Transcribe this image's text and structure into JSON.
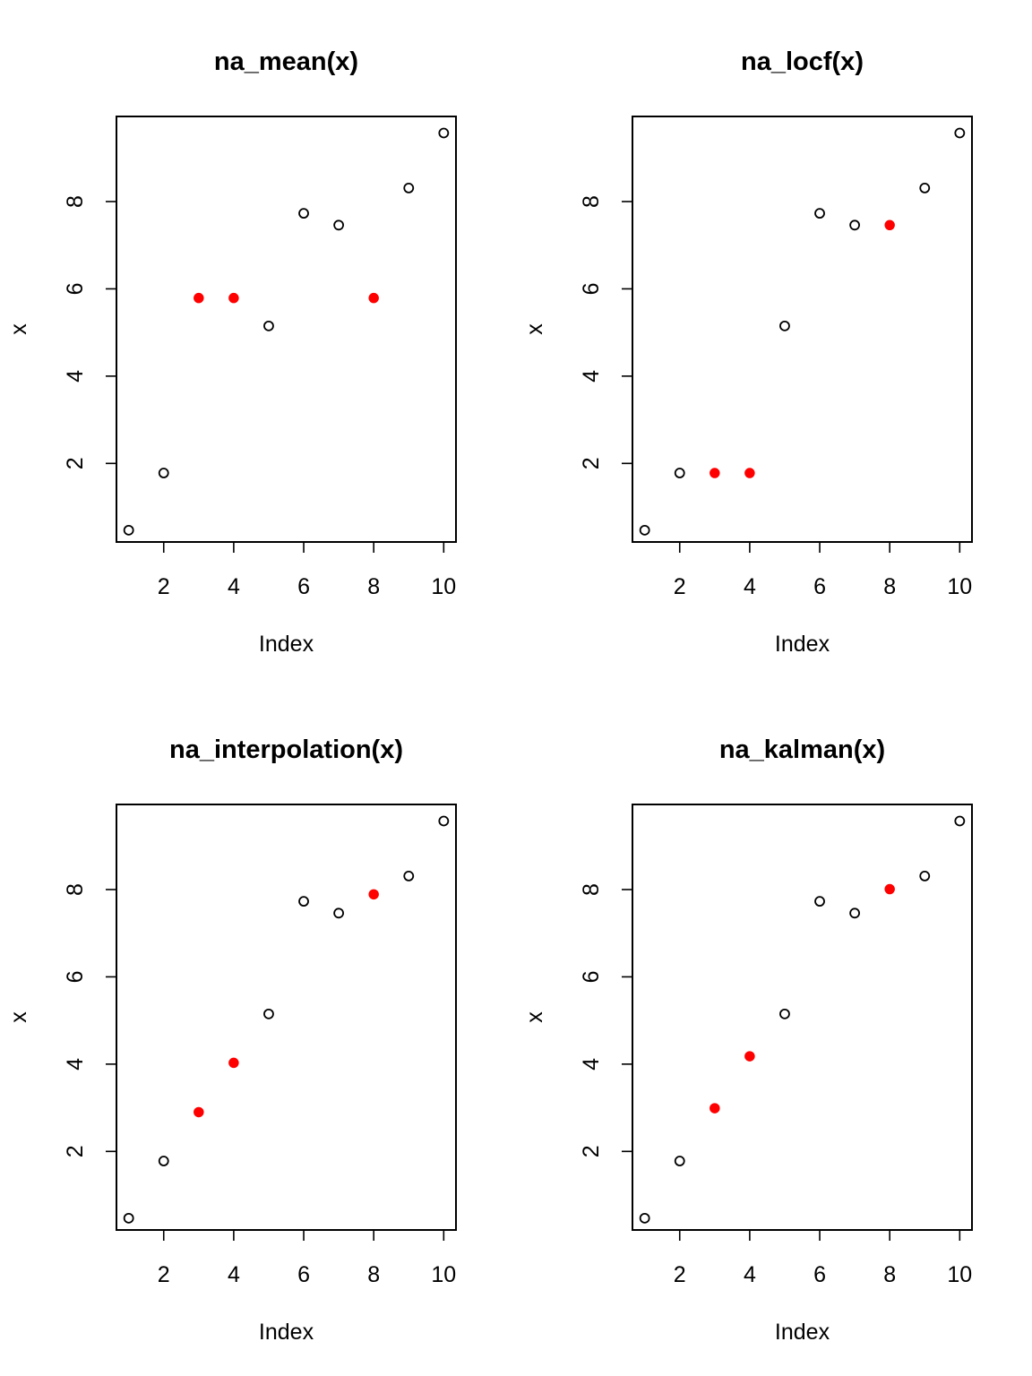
{
  "colors": {
    "observed": "#000000",
    "imputed": "#ff0000",
    "background": "#ffffff"
  },
  "chart_data": [
    {
      "type": "scatter",
      "title": "na_mean(x)",
      "xlabel": "Index",
      "ylabel": "x",
      "xlim": [
        0.65,
        10.35
      ],
      "ylim": [
        0.2,
        9.95
      ],
      "xticks": [
        "2",
        "4",
        "6",
        "8",
        "10"
      ],
      "yticks": [
        "2",
        "4",
        "6",
        "8"
      ],
      "grid": false,
      "legend": "none",
      "x": [
        1,
        2,
        3,
        4,
        5,
        6,
        7,
        8,
        9,
        10
      ],
      "y": [
        0.47,
        1.78,
        5.79,
        5.79,
        5.15,
        7.73,
        7.46,
        5.79,
        8.31,
        9.57
      ],
      "imputed": [
        false,
        false,
        true,
        true,
        false,
        false,
        false,
        true,
        false,
        false
      ]
    },
    {
      "type": "scatter",
      "title": "na_locf(x)",
      "xlabel": "Index",
      "ylabel": "x",
      "xlim": [
        0.65,
        10.35
      ],
      "ylim": [
        0.2,
        9.95
      ],
      "xticks": [
        "2",
        "4",
        "6",
        "8",
        "10"
      ],
      "yticks": [
        "2",
        "4",
        "6",
        "8"
      ],
      "grid": false,
      "legend": "none",
      "x": [
        1,
        2,
        3,
        4,
        5,
        6,
        7,
        8,
        9,
        10
      ],
      "y": [
        0.47,
        1.78,
        1.78,
        1.78,
        5.15,
        7.73,
        7.46,
        7.46,
        8.31,
        9.57
      ],
      "imputed": [
        false,
        false,
        true,
        true,
        false,
        false,
        false,
        true,
        false,
        false
      ]
    },
    {
      "type": "scatter",
      "title": "na_interpolation(x)",
      "xlabel": "Index",
      "ylabel": "x",
      "xlim": [
        0.65,
        10.35
      ],
      "ylim": [
        0.2,
        9.95
      ],
      "xticks": [
        "2",
        "4",
        "6",
        "8",
        "10"
      ],
      "yticks": [
        "2",
        "4",
        "6",
        "8"
      ],
      "grid": false,
      "legend": "none",
      "x": [
        1,
        2,
        3,
        4,
        5,
        6,
        7,
        8,
        9,
        10
      ],
      "y": [
        0.47,
        1.78,
        2.9,
        4.03,
        5.15,
        7.73,
        7.46,
        7.89,
        8.31,
        9.57
      ],
      "imputed": [
        false,
        false,
        true,
        true,
        false,
        false,
        false,
        true,
        false,
        false
      ]
    },
    {
      "type": "scatter",
      "title": "na_kalman(x)",
      "xlabel": "Index",
      "ylabel": "x",
      "xlim": [
        0.65,
        10.35
      ],
      "ylim": [
        0.2,
        9.95
      ],
      "xticks": [
        "2",
        "4",
        "6",
        "8",
        "10"
      ],
      "yticks": [
        "2",
        "4",
        "6",
        "8"
      ],
      "grid": false,
      "legend": "none",
      "x": [
        1,
        2,
        3,
        4,
        5,
        6,
        7,
        8,
        9,
        10
      ],
      "y": [
        0.47,
        1.78,
        2.99,
        4.18,
        5.15,
        7.73,
        7.46,
        8.01,
        8.31,
        9.57
      ],
      "imputed": [
        false,
        false,
        true,
        true,
        false,
        false,
        false,
        true,
        false,
        false
      ]
    }
  ]
}
